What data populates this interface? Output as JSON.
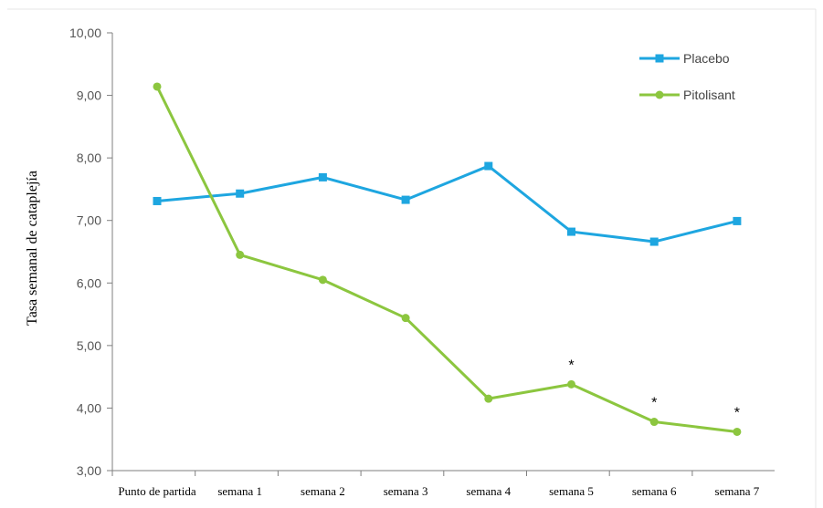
{
  "chart_data": {
    "type": "line",
    "title": "",
    "xlabel": "",
    "ylabel": "Tasa semanal de cataplejía",
    "categories": [
      "Punto de partida",
      "semana 1",
      "semana 2",
      "semana 3",
      "semana 4",
      "semana 5",
      "semana 6",
      "semana 7"
    ],
    "ylim": [
      3.0,
      10.0
    ],
    "yticks": [
      "3,00",
      "4,00",
      "5,00",
      "6,00",
      "7,00",
      "8,00",
      "9,00",
      "10,00"
    ],
    "series": [
      {
        "name": "Placebo",
        "color": "#1ea6e0",
        "marker": "square",
        "values": [
          7.31,
          7.43,
          7.69,
          7.33,
          7.87,
          6.82,
          6.66,
          6.99
        ]
      },
      {
        "name": "Pitolisant",
        "color": "#8cc63f",
        "marker": "circle",
        "values": [
          9.14,
          6.45,
          6.05,
          5.44,
          4.15,
          4.38,
          3.78,
          3.62
        ]
      }
    ],
    "annotations": [
      {
        "text": "*",
        "category": "semana 5"
      },
      {
        "text": "*",
        "category": "semana 6"
      },
      {
        "text": "*",
        "category": "semana 7"
      }
    ],
    "grid": false,
    "legend_position": "top-right"
  }
}
